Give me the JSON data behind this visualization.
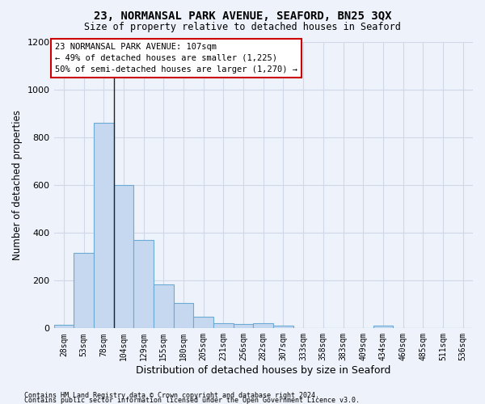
{
  "title1": "23, NORMANSAL PARK AVENUE, SEAFORD, BN25 3QX",
  "title2": "Size of property relative to detached houses in Seaford",
  "xlabel": "Distribution of detached houses by size in Seaford",
  "ylabel": "Number of detached properties",
  "categories": [
    "28sqm",
    "53sqm",
    "78sqm",
    "104sqm",
    "129sqm",
    "155sqm",
    "180sqm",
    "205sqm",
    "231sqm",
    "256sqm",
    "282sqm",
    "307sqm",
    "333sqm",
    "358sqm",
    "383sqm",
    "409sqm",
    "434sqm",
    "460sqm",
    "485sqm",
    "511sqm",
    "536sqm"
  ],
  "values": [
    15,
    315,
    860,
    600,
    370,
    185,
    105,
    48,
    20,
    18,
    20,
    10,
    0,
    0,
    0,
    0,
    12,
    0,
    0,
    0,
    0
  ],
  "bar_color": "#c5d8f0",
  "bar_edge_color": "#6aaad4",
  "property_bar_index": 3,
  "annotation_line1": "23 NORMANSAL PARK AVENUE: 107sqm",
  "annotation_line2": "← 49% of detached houses are smaller (1,225)",
  "annotation_line3": "50% of semi-detached houses are larger (1,270) →",
  "annotation_box_color": "#ffffff",
  "annotation_border_color": "#cc0000",
  "vline_color": "#222222",
  "ylim": [
    0,
    1200
  ],
  "yticks": [
    0,
    200,
    400,
    600,
    800,
    1000,
    1200
  ],
  "grid_color": "#d0d8e8",
  "footer1": "Contains HM Land Registry data © Crown copyright and database right 2024.",
  "footer2": "Contains public sector information licensed under the Open Government Licence v3.0.",
  "bg_color": "#eef2fb"
}
